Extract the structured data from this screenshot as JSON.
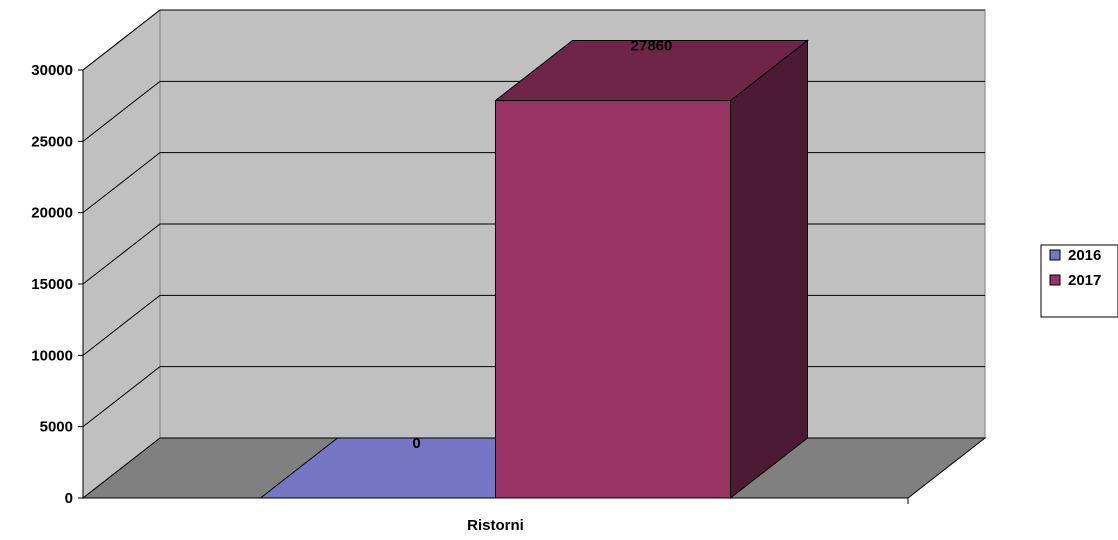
{
  "chart_data": {
    "type": "bar",
    "categories": [
      "Ristorni"
    ],
    "series": [
      {
        "name": "2016",
        "values": [
          0
        ]
      },
      {
        "name": "2017",
        "values": [
          27860
        ]
      }
    ],
    "data_labels": [
      "0",
      "27860"
    ],
    "ylim": [
      0,
      30000
    ],
    "y_ticks": [
      "0",
      "5000",
      "10000",
      "15000",
      "20000",
      "25000",
      "30000"
    ],
    "grid": true,
    "legend_position": "right",
    "three_d": true,
    "colors": {
      "series_2016": "#7676c4",
      "series_2017": "#983363",
      "wall": "#c0c0c0",
      "floor": "#808080"
    }
  }
}
